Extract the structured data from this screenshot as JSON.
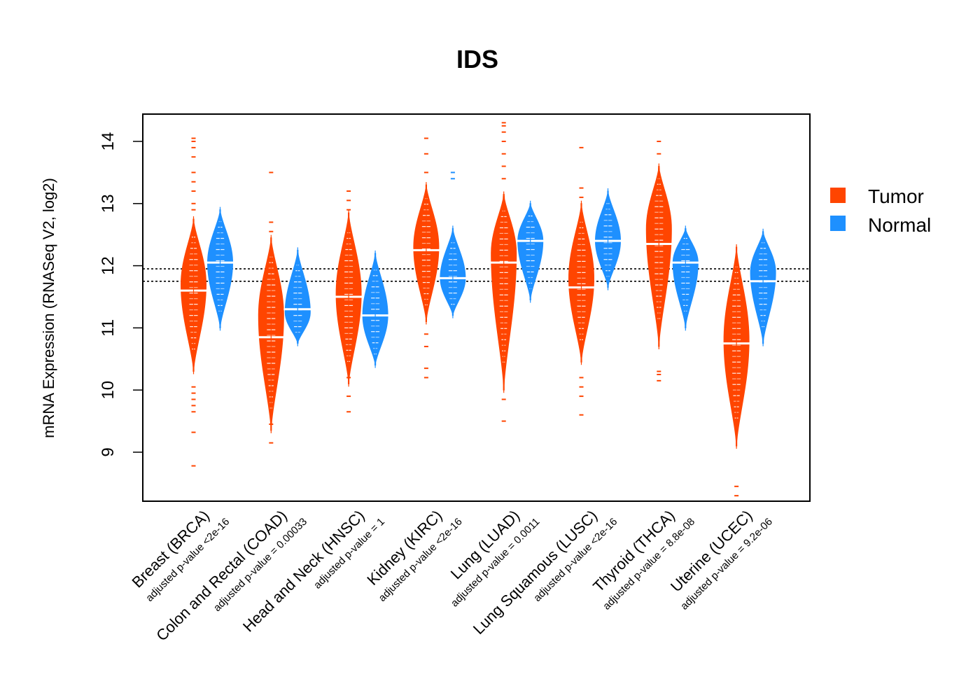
{
  "chart_data": {
    "type": "violin",
    "title": "IDS",
    "xlabel": "",
    "ylabel": "mRNA Expression (RNASeq V2, log2)",
    "ylim": [
      8.35,
      14.45
    ],
    "yticks": [
      9,
      10,
      11,
      12,
      13,
      14
    ],
    "reference_lines": [
      11.95,
      11.75
    ],
    "colors": {
      "tumor": "#FF4500",
      "normal": "#1E90FF"
    },
    "legend": [
      {
        "name": "Tumor",
        "color": "#FF4500"
      },
      {
        "name": "Normal",
        "color": "#1E90FF"
      }
    ],
    "categories": [
      {
        "label": "Breast (BRCA)",
        "pvalue": "adjusted p-value <2e-16",
        "tumor": {
          "median": 11.6,
          "low": 10.3,
          "high": 12.75,
          "wide": 11.7,
          "outliers": [
            8.78,
            9.32,
            9.65,
            9.75,
            9.85,
            9.95,
            10.05,
            12.9,
            13.0,
            13.2,
            13.35,
            13.5,
            13.75,
            13.9,
            14.0,
            14.05
          ]
        },
        "normal": {
          "median": 12.05,
          "low": 11.0,
          "high": 12.9,
          "wide": 12.05,
          "outliers": []
        }
      },
      {
        "label": "Colon and Rectal (COAD)",
        "pvalue": "adjusted p-value = 0.00033",
        "tumor": {
          "median": 10.85,
          "low": 9.35,
          "high": 12.45,
          "wide": 11.2,
          "outliers": [
            9.15,
            9.45,
            12.55,
            12.7,
            13.5
          ]
        },
        "normal": {
          "median": 11.3,
          "low": 10.75,
          "high": 12.25,
          "wide": 11.25,
          "outliers": []
        }
      },
      {
        "label": "Head and Neck (HNSC)",
        "pvalue": "adjusted p-value = 1",
        "tumor": {
          "median": 11.5,
          "low": 10.1,
          "high": 12.85,
          "wide": 11.55,
          "outliers": [
            9.65,
            9.9,
            10.2,
            12.9,
            13.05,
            13.2
          ]
        },
        "normal": {
          "median": 11.2,
          "low": 10.4,
          "high": 12.2,
          "wide": 11.2,
          "outliers": []
        }
      },
      {
        "label": "Kidney (KIRC)",
        "pvalue": "adjusted p-value <2e-16",
        "tumor": {
          "median": 12.25,
          "low": 11.1,
          "high": 13.3,
          "wide": 12.3,
          "outliers": [
            10.2,
            10.35,
            10.7,
            10.9,
            13.5,
            13.8,
            14.05
          ]
        },
        "normal": {
          "median": 11.8,
          "low": 11.2,
          "high": 12.6,
          "wide": 11.8,
          "outliers": [
            13.4,
            13.5
          ]
        }
      },
      {
        "label": "Lung (LUAD)",
        "pvalue": "adjusted p-value = 0.0011",
        "tumor": {
          "median": 12.05,
          "low": 10.0,
          "high": 13.15,
          "wide": 12.2,
          "outliers": [
            9.5,
            9.85,
            13.4,
            13.6,
            13.8,
            14.0,
            14.15,
            14.25,
            14.3
          ]
        },
        "normal": {
          "median": 12.4,
          "low": 11.45,
          "high": 13.0,
          "wide": 12.4,
          "outliers": []
        }
      },
      {
        "label": "Lung Squamous (LUSC)",
        "pvalue": "adjusted p-value <2e-16",
        "tumor": {
          "median": 11.65,
          "low": 10.45,
          "high": 13.0,
          "wide": 11.8,
          "outliers": [
            9.6,
            9.9,
            10.05,
            10.2,
            13.1,
            13.25,
            13.9
          ]
        },
        "normal": {
          "median": 12.4,
          "low": 11.65,
          "high": 13.2,
          "wide": 12.4,
          "outliers": []
        }
      },
      {
        "label": "Thyroid (THCA)",
        "pvalue": "adjusted p-value = 8.8e-08",
        "tumor": {
          "median": 12.35,
          "low": 10.7,
          "high": 13.6,
          "wide": 12.6,
          "outliers": [
            10.15,
            10.25,
            10.3,
            13.8,
            14.0
          ]
        },
        "normal": {
          "median": 12.05,
          "low": 11.0,
          "high": 12.6,
          "wide": 12.05,
          "outliers": []
        }
      },
      {
        "label": "Uterine (UCEC)",
        "pvalue": "adjusted p-value = 9.2e-06",
        "tumor": {
          "median": 10.75,
          "low": 9.1,
          "high": 12.3,
          "wide": 10.8,
          "outliers": [
            8.3,
            8.45
          ]
        },
        "normal": {
          "median": 11.75,
          "low": 10.75,
          "high": 12.55,
          "wide": 11.9,
          "outliers": []
        }
      }
    ]
  }
}
